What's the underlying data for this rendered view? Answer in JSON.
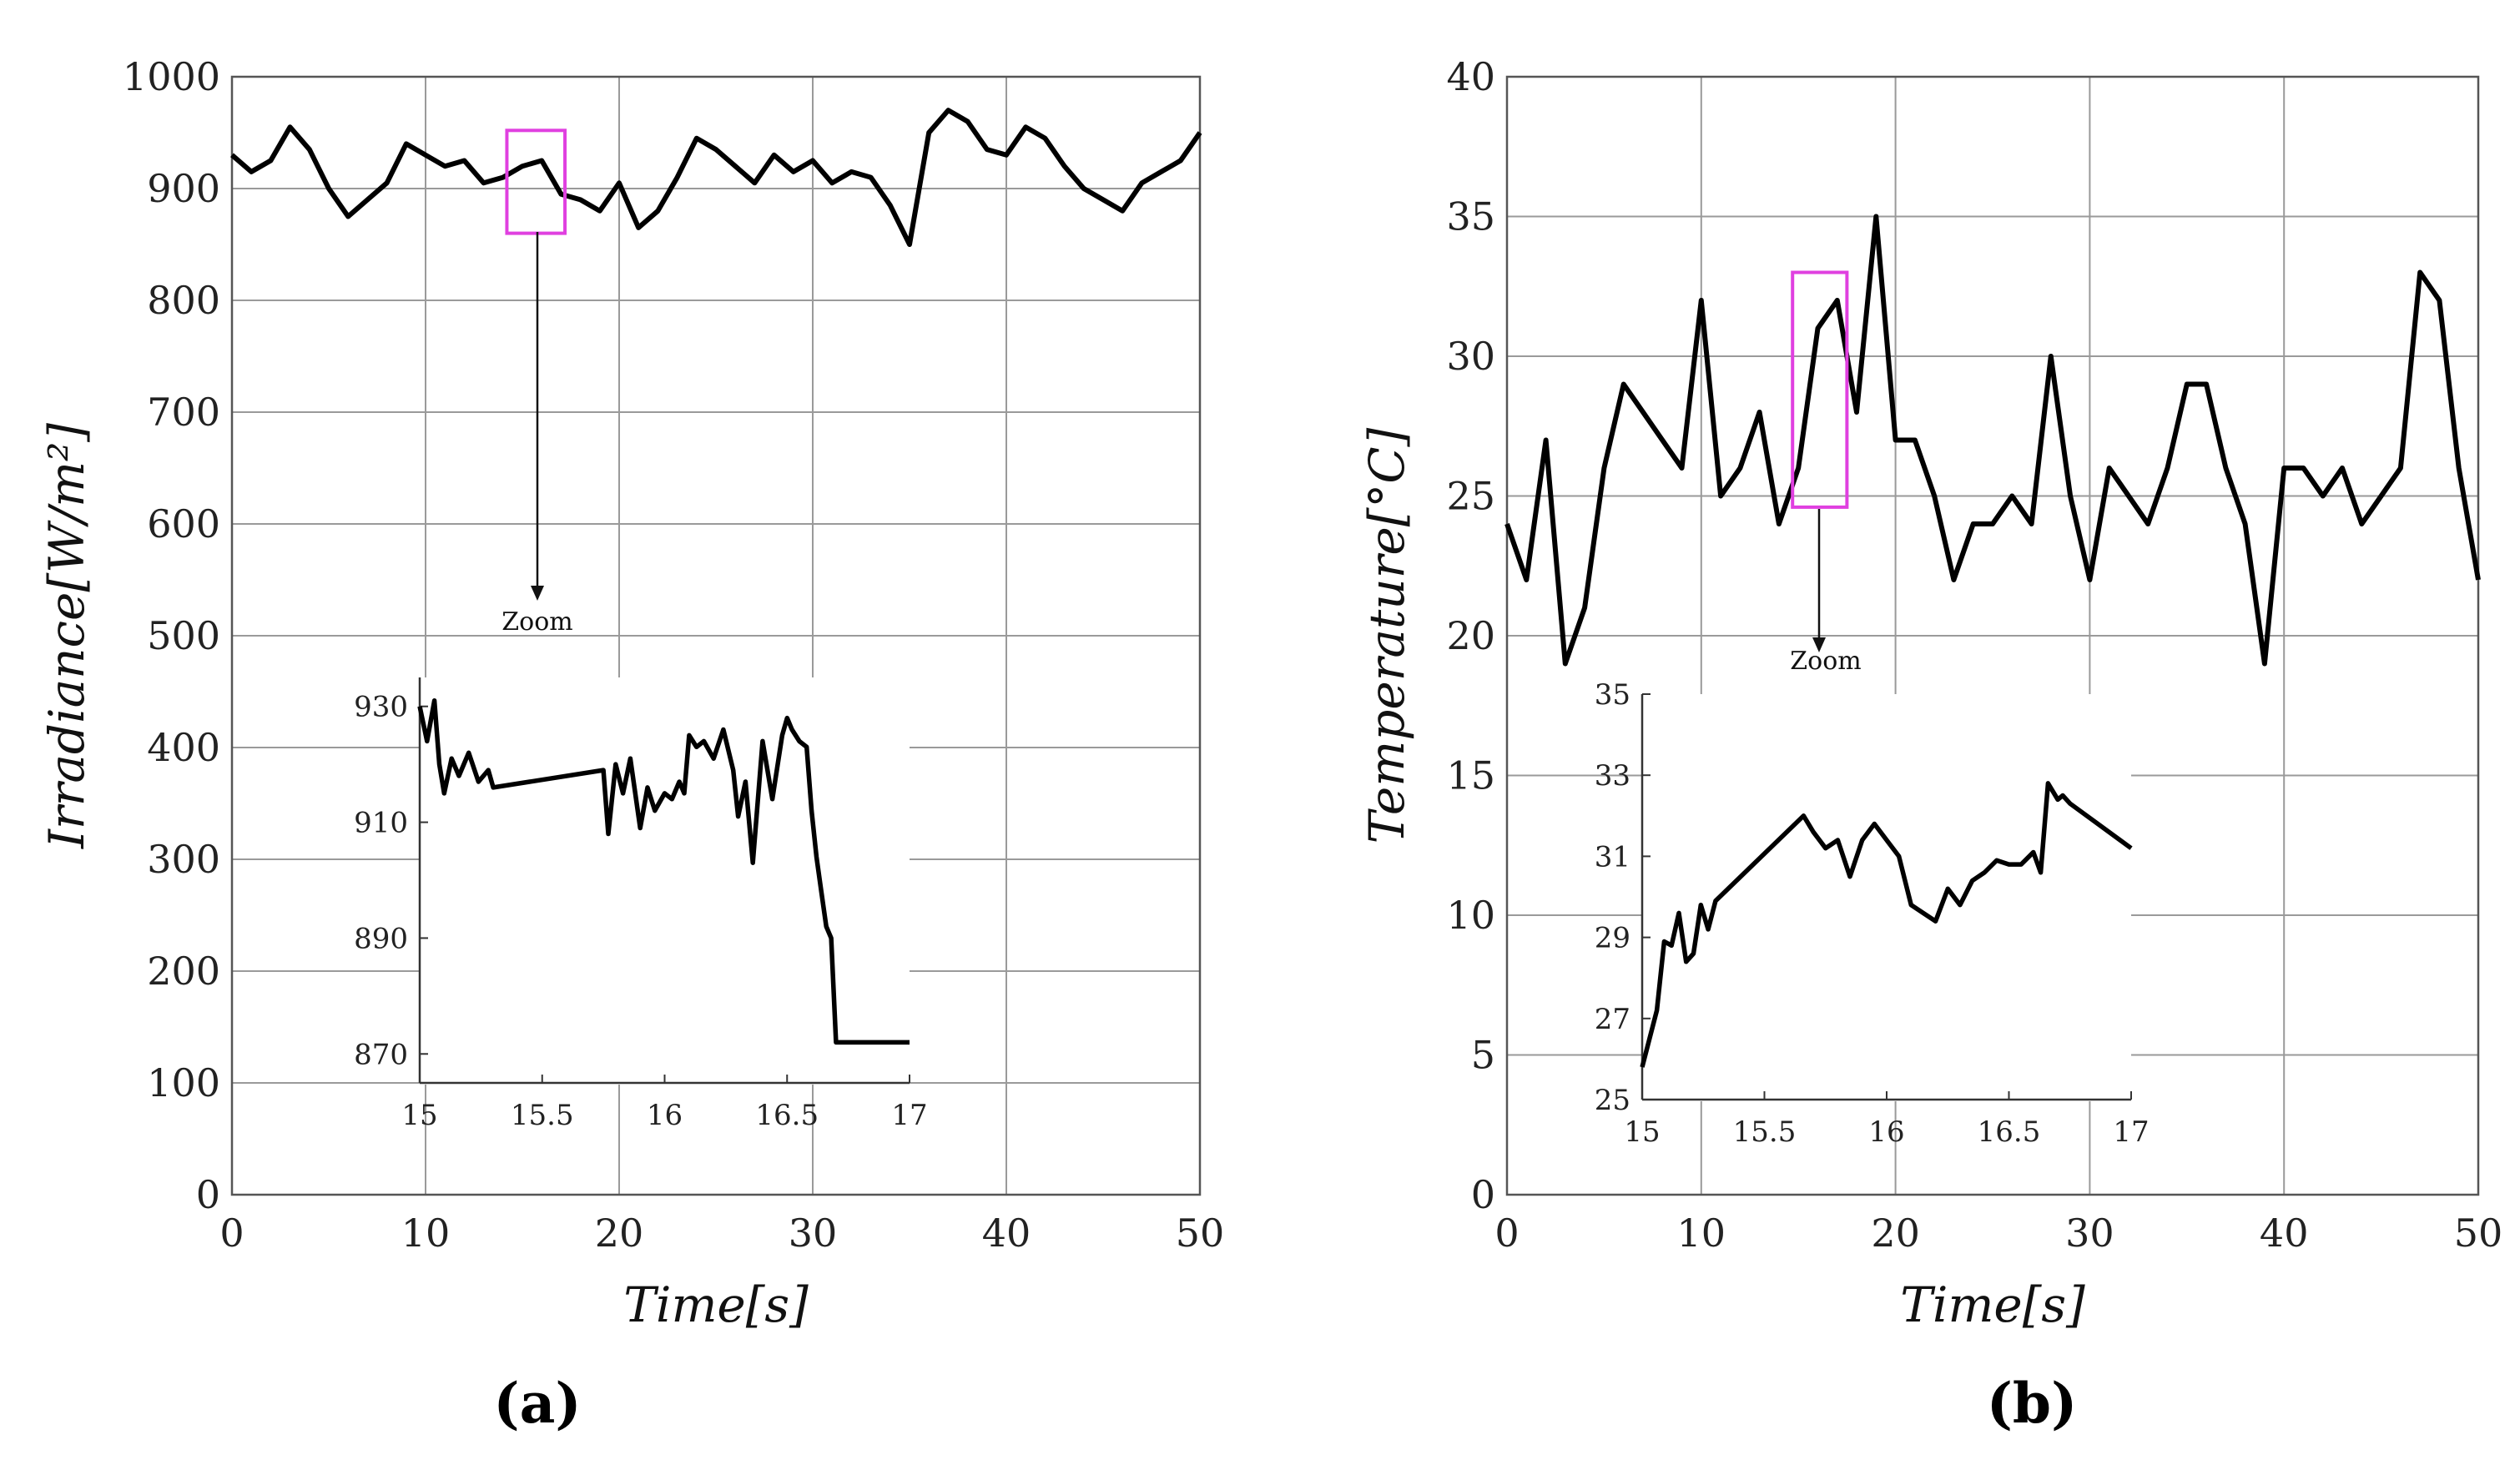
{
  "chart_data": [
    {
      "type": "line",
      "panel_label": "(a)",
      "xlabel": "Time[s]",
      "ylabel": "Irradiance[W/m²]",
      "xlim": [
        0,
        50
      ],
      "ylim": [
        0,
        1000
      ],
      "xticks": [
        "0",
        "10",
        "20",
        "30",
        "40",
        "50"
      ],
      "yticks": [
        "0",
        "100",
        "200",
        "300",
        "400",
        "500",
        "600",
        "700",
        "800",
        "900",
        "1000"
      ],
      "grid": true,
      "line_color": "#000000",
      "zoom_box": {
        "x": [
          14.2,
          17.2
        ],
        "y": [
          860,
          952
        ],
        "color": "#e040e0"
      },
      "zoom_label": "Zoom",
      "x": [
        0,
        1,
        2,
        3,
        4,
        5,
        6,
        7,
        8,
        9,
        10,
        11,
        12,
        13,
        14,
        15,
        16,
        17,
        18,
        19,
        20,
        21,
        22,
        23,
        24,
        25,
        26,
        27,
        28,
        29,
        30,
        31,
        32,
        33,
        34,
        35,
        36,
        37,
        38,
        39,
        40,
        41,
        42,
        43,
        44,
        45,
        46,
        47,
        48,
        49,
        50
      ],
      "values": [
        930,
        915,
        925,
        955,
        935,
        900,
        875,
        890,
        905,
        940,
        930,
        920,
        925,
        905,
        910,
        920,
        925,
        895,
        890,
        880,
        905,
        865,
        880,
        910,
        945,
        935,
        920,
        905,
        930,
        915,
        925,
        905,
        915,
        910,
        885,
        850,
        950,
        970,
        960,
        935,
        930,
        955,
        945,
        920,
        900,
        890,
        880,
        905,
        915,
        925,
        950
      ],
      "inset": {
        "xlim": [
          15,
          17
        ],
        "ylim": [
          865,
          935
        ],
        "xticks": [
          "15",
          "15.5",
          "16",
          "16.5",
          "17"
        ],
        "yticks": [
          "870",
          "890",
          "910",
          "930"
        ],
        "x": [
          15.0,
          15.03,
          15.06,
          15.08,
          15.1,
          15.13,
          15.16,
          15.2,
          15.24,
          15.28,
          15.3,
          15.75,
          15.77,
          15.8,
          15.83,
          15.86,
          15.9,
          15.93,
          15.96,
          16.0,
          16.03,
          16.06,
          16.08,
          16.1,
          16.13,
          16.16,
          16.2,
          16.24,
          16.28,
          16.3,
          16.33,
          16.36,
          16.4,
          16.44,
          16.48,
          16.5,
          16.52,
          16.55,
          16.58,
          16.6,
          16.62,
          16.64,
          16.66,
          16.68,
          16.7,
          17.0
        ],
        "values": [
          930,
          924,
          931,
          920,
          915,
          921,
          918,
          922,
          917,
          919,
          916,
          919,
          908,
          920,
          915,
          921,
          909,
          916,
          912,
          915,
          914,
          917,
          915,
          925,
          923,
          924,
          921,
          926,
          919,
          911,
          917,
          903,
          924,
          914,
          925,
          928,
          926,
          924,
          923,
          912,
          904,
          898,
          892,
          890,
          872,
          872
        ]
      }
    },
    {
      "type": "line",
      "panel_label": "(b)",
      "xlabel": "Time[s]",
      "ylabel": "Temperature[°C]",
      "xlim": [
        0,
        50
      ],
      "ylim": [
        0,
        40
      ],
      "xticks": [
        "0",
        "10",
        "20",
        "30",
        "40",
        "50"
      ],
      "yticks": [
        "0",
        "5",
        "10",
        "15",
        "20",
        "25",
        "30",
        "35",
        "40"
      ],
      "grid": true,
      "line_color": "#000000",
      "zoom_box": {
        "x": [
          14.7,
          17.5
        ],
        "y": [
          24.6,
          33.0
        ],
        "color": "#e040e0"
      },
      "zoom_label": "Zoom",
      "x": [
        0,
        1,
        2,
        3,
        4,
        5,
        6,
        7,
        8,
        9,
        10,
        11,
        12,
        13,
        14,
        15,
        16,
        17,
        18,
        19,
        20,
        21,
        22,
        23,
        24,
        25,
        26,
        27,
        28,
        29,
        30,
        31,
        32,
        33,
        34,
        35,
        36,
        37,
        38,
        39,
        40,
        41,
        42,
        43,
        44,
        45,
        46,
        47,
        48,
        49,
        50
      ],
      "values": [
        24,
        22,
        27,
        19,
        21,
        26,
        29,
        28,
        27,
        26,
        32,
        25,
        26,
        28,
        24,
        26,
        31,
        32,
        28,
        35,
        27,
        27,
        25,
        22,
        24,
        24,
        25,
        24,
        30,
        25,
        22,
        26,
        25,
        24,
        26,
        29,
        29,
        26,
        24,
        19,
        26,
        26,
        25,
        26,
        24,
        25,
        26,
        33,
        32,
        26,
        22
      ],
      "inset": {
        "xlim": [
          15,
          17
        ],
        "ylim": [
          25,
          35
        ],
        "xticks": [
          "15",
          "15.5",
          "16",
          "16.5",
          "17"
        ],
        "yticks": [
          "25",
          "27",
          "29",
          "31",
          "33",
          "35"
        ],
        "x": [
          15.0,
          15.03,
          15.06,
          15.09,
          15.12,
          15.15,
          15.18,
          15.21,
          15.24,
          15.27,
          15.3,
          15.66,
          15.7,
          15.75,
          15.8,
          15.85,
          15.9,
          15.95,
          16.0,
          16.05,
          16.1,
          16.15,
          16.2,
          16.25,
          16.3,
          16.35,
          16.4,
          16.45,
          16.5,
          16.55,
          16.6,
          16.63,
          16.66,
          16.7,
          16.72,
          16.75,
          17.0
        ],
        "values": [
          25.8,
          26.5,
          27.2,
          28.9,
          28.8,
          29.6,
          28.4,
          28.6,
          29.8,
          29.2,
          29.9,
          32.0,
          31.6,
          31.2,
          31.4,
          30.5,
          31.4,
          31.8,
          31.4,
          31.0,
          29.8,
          29.6,
          29.4,
          30.2,
          29.8,
          30.4,
          30.6,
          30.9,
          30.8,
          30.8,
          31.1,
          30.6,
          32.8,
          32.4,
          32.5,
          32.3,
          31.2
        ]
      }
    }
  ]
}
